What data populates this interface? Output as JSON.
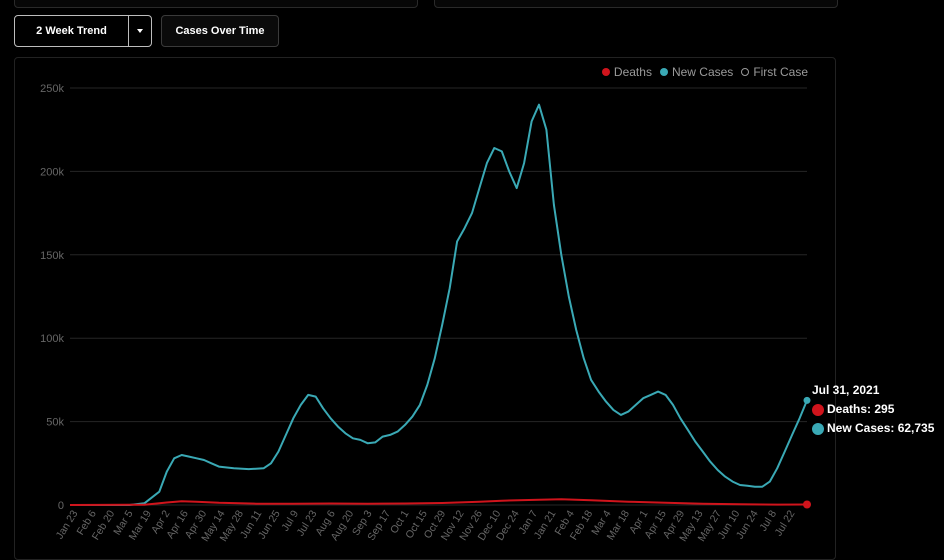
{
  "controls": {
    "trend_label": "2 Week Trend",
    "view_label": "Cases Over Time"
  },
  "legend": {
    "deaths": "Deaths",
    "new_cases": "New Cases",
    "first_case": "First Case"
  },
  "tooltip": {
    "date": "Jul 31, 2021",
    "deaths": "Deaths: 295",
    "new_cases": "New Cases: 62,735"
  },
  "colors": {
    "deaths": "#d0141c",
    "new_cases": "#3aa9b5",
    "grid": "#262626",
    "tick": "#666666"
  },
  "chart_data": {
    "type": "line",
    "title": "",
    "xlabel": "",
    "ylabel": "",
    "ylim": [
      0,
      250000
    ],
    "y_ticks": [
      "0",
      "50k",
      "100k",
      "150k",
      "200k",
      "250k"
    ],
    "y_tick_values": [
      0,
      50000,
      100000,
      150000,
      200000,
      250000
    ],
    "x_tick_labels": [
      "Jan 23",
      "Feb 6",
      "Feb 20",
      "Mar 5",
      "Mar 19",
      "Apr 2",
      "Apr 16",
      "Apr 30",
      "May 14",
      "May 28",
      "Jun 11",
      "Jun 25",
      "Jul 9",
      "Jul 23",
      "Aug 6",
      "Aug 20",
      "Sep 3",
      "Sep 17",
      "Oct 1",
      "Oct 15",
      "Oct 29",
      "Nov 12",
      "Nov 26",
      "Dec 10",
      "Dec 24",
      "Jan 7",
      "Jan 21",
      "Feb 4",
      "Feb 18",
      "Mar 4",
      "Mar 18",
      "Apr 1",
      "Apr 15",
      "Apr 29",
      "May 13",
      "May 27",
      "Jun 10",
      "Jun 24",
      "Jul 8",
      "Jul 22"
    ],
    "grid": true,
    "legend_position": "top-right",
    "series": [
      {
        "name": "New Cases",
        "points": [
          [
            0,
            0
          ],
          [
            8,
            0
          ],
          [
            10,
            1000
          ],
          [
            12,
            8000
          ],
          [
            13,
            20000
          ],
          [
            14,
            28000
          ],
          [
            15,
            30000
          ],
          [
            16,
            29000
          ],
          [
            17,
            28000
          ],
          [
            18,
            27000
          ],
          [
            19,
            25000
          ],
          [
            20,
            23000
          ],
          [
            22,
            22000
          ],
          [
            24,
            21500
          ],
          [
            26,
            22000
          ],
          [
            27,
            25000
          ],
          [
            28,
            32000
          ],
          [
            29,
            42000
          ],
          [
            30,
            52000
          ],
          [
            31,
            60000
          ],
          [
            32,
            66000
          ],
          [
            33,
            65000
          ],
          [
            34,
            58000
          ],
          [
            35,
            52000
          ],
          [
            36,
            47000
          ],
          [
            37,
            43000
          ],
          [
            38,
            40000
          ],
          [
            39,
            39000
          ],
          [
            40,
            37000
          ],
          [
            41,
            37500
          ],
          [
            42,
            41000
          ],
          [
            43,
            42000
          ],
          [
            44,
            44000
          ],
          [
            45,
            48000
          ],
          [
            46,
            53000
          ],
          [
            47,
            60000
          ],
          [
            48,
            72000
          ],
          [
            49,
            88000
          ],
          [
            50,
            108000
          ],
          [
            51,
            130000
          ],
          [
            52,
            158000
          ],
          [
            53,
            166000
          ],
          [
            54,
            175000
          ],
          [
            55,
            190000
          ],
          [
            56,
            205000
          ],
          [
            57,
            214000
          ],
          [
            58,
            212000
          ],
          [
            59,
            200000
          ],
          [
            60,
            190000
          ],
          [
            61,
            205000
          ],
          [
            62,
            230000
          ],
          [
            63,
            240000
          ],
          [
            64,
            225000
          ],
          [
            65,
            180000
          ],
          [
            66,
            150000
          ],
          [
            67,
            125000
          ],
          [
            68,
            105000
          ],
          [
            69,
            88000
          ],
          [
            70,
            75000
          ],
          [
            71,
            68000
          ],
          [
            72,
            62000
          ],
          [
            73,
            57000
          ],
          [
            74,
            54000
          ],
          [
            75,
            56000
          ],
          [
            76,
            60000
          ],
          [
            77,
            64000
          ],
          [
            78,
            66000
          ],
          [
            79,
            68000
          ],
          [
            80,
            66000
          ],
          [
            81,
            60000
          ],
          [
            82,
            52000
          ],
          [
            83,
            45000
          ],
          [
            84,
            38000
          ],
          [
            85,
            32000
          ],
          [
            86,
            26000
          ],
          [
            87,
            21000
          ],
          [
            88,
            17000
          ],
          [
            89,
            14000
          ],
          [
            90,
            12000
          ],
          [
            91,
            11500
          ],
          [
            92,
            11000
          ],
          [
            93,
            11000
          ],
          [
            94,
            14000
          ],
          [
            95,
            22000
          ],
          [
            96,
            32000
          ],
          [
            97,
            42000
          ],
          [
            98,
            52000
          ],
          [
            99,
            62735
          ]
        ]
      },
      {
        "name": "Deaths",
        "points": [
          [
            0,
            0
          ],
          [
            10,
            200
          ],
          [
            13,
            1500
          ],
          [
            15,
            2300
          ],
          [
            17,
            2000
          ],
          [
            20,
            1300
          ],
          [
            25,
            800
          ],
          [
            30,
            700
          ],
          [
            35,
            900
          ],
          [
            40,
            800
          ],
          [
            45,
            900
          ],
          [
            50,
            1200
          ],
          [
            55,
            2000
          ],
          [
            58,
            2600
          ],
          [
            63,
            3200
          ],
          [
            66,
            3400
          ],
          [
            70,
            2800
          ],
          [
            75,
            2000
          ],
          [
            80,
            1300
          ],
          [
            85,
            800
          ],
          [
            90,
            400
          ],
          [
            95,
            250
          ],
          [
            99,
            295
          ]
        ]
      }
    ]
  }
}
